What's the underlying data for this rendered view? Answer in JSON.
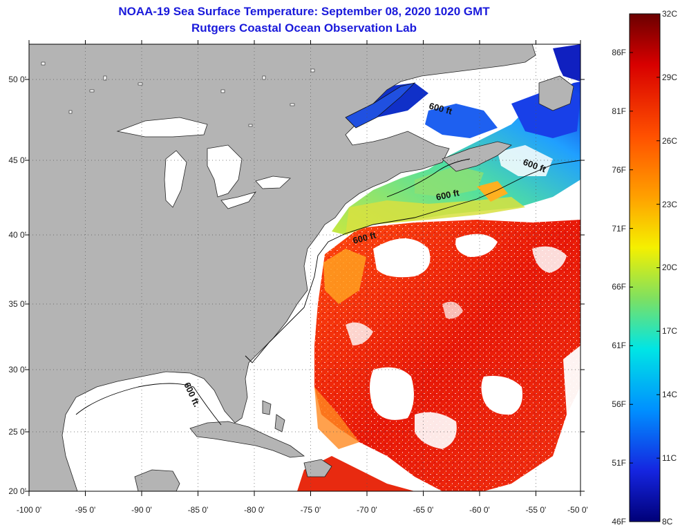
{
  "header": {
    "title": "NOAA-19 Sea Surface Temperature:  September 08, 2020 1020 GMT",
    "subtitle": "Rutgers Coastal Ocean Observation Lab"
  },
  "axes": {
    "lon_ticks": [
      "-100 0'",
      "-95 0'",
      "-90 0'",
      "-85 0'",
      "-80 0'",
      "-75 0'",
      "-70 0'",
      "-65 0'",
      "-60 0'",
      "-55 0'",
      "-50 0'"
    ],
    "lat_ticks": [
      "50 0'",
      "45 0'",
      "40 0'",
      "35 0'",
      "30 0'",
      "25 0'",
      "20 0'"
    ],
    "lon_range": [
      -100,
      -50
    ],
    "lat_range": [
      20,
      52
    ]
  },
  "isobath_labels": [
    "600 ft",
    "600 ft",
    "600 ft",
    "600 ft",
    "600 ft."
  ],
  "colorbar": {
    "celsius_labels": [
      "32C",
      "29C",
      "26C",
      "23C",
      "20C",
      "17C",
      "14C",
      "11C",
      "8C"
    ],
    "fahrenheit_labels": [
      "86F",
      "81F",
      "76F",
      "71F",
      "66F",
      "61F",
      "56F",
      "51F",
      "46F"
    ],
    "colors": [
      "#6b0000",
      "#d80000",
      "#ff5500",
      "#ffa000",
      "#f0f000",
      "#7fe060",
      "#00e0e0",
      "#0090ff",
      "#1020e0",
      "#000080"
    ]
  },
  "colors": {
    "land": "#b4b4b4",
    "cloud": "#ffffff",
    "title": "#1a1adb"
  }
}
